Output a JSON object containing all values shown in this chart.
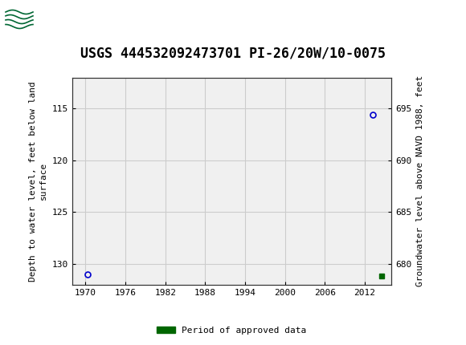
{
  "title": "USGS 444532092473701 PI-26/20W/10-0075",
  "left_ylabel": "Depth to water level, feet below land\nsurface",
  "right_ylabel": "Groundwater level above NAVD 1988, feet",
  "xlim": [
    1968,
    2016
  ],
  "ylim_left": [
    132,
    112
  ],
  "ylim_right": [
    678,
    698
  ],
  "xticks": [
    1970,
    1976,
    1982,
    1988,
    1994,
    2000,
    2006,
    2012
  ],
  "yticks_left": [
    115,
    120,
    125,
    130
  ],
  "yticks_right": [
    680,
    685,
    690,
    695
  ],
  "data_points": [
    {
      "x": 1970.3,
      "y_left": 131.0,
      "type": "unapproved"
    },
    {
      "x": 2013.2,
      "y_left": 115.6,
      "type": "unapproved"
    },
    {
      "x": 2014.5,
      "y_left": 131.2,
      "type": "approved"
    }
  ],
  "point_color_unapproved": "#0000cc",
  "point_color_approved": "#006600",
  "grid_color": "#cccccc",
  "background_color": "#ffffff",
  "header_bg_color": "#006633",
  "header_text_color": "#ffffff",
  "plot_bg_color": "#f0f0f0",
  "legend_label": "Period of approved data",
  "legend_color": "#006600",
  "title_fontsize": 12,
  "axis_fontsize": 8,
  "tick_fontsize": 8,
  "font_family": "monospace"
}
